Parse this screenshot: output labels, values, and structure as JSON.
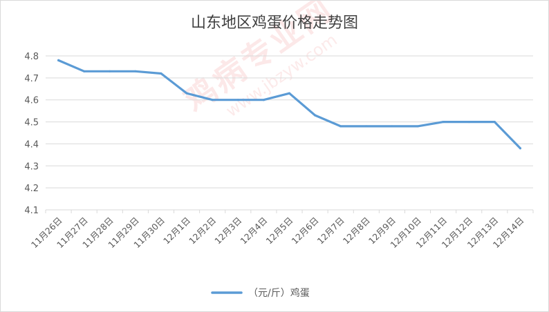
{
  "watermark": {
    "main": "鸡病专业网",
    "sub": "www.jbzyw.com"
  },
  "chart_data": {
    "type": "line",
    "title": "山东地区鸡蛋价格走势图",
    "categories": [
      "11月26日",
      "11月27日",
      "11月28日",
      "11月29日",
      "11月30日",
      "12月1日",
      "12月2日",
      "12月3日",
      "12月4日",
      "12月5日",
      "12月6日",
      "12月7日",
      "12月8日",
      "12月9日",
      "12月10日",
      "12月11日",
      "12月12日",
      "12月13日",
      "12月14日"
    ],
    "series": [
      {
        "name": "（元/斤）鸡蛋",
        "values": [
          4.78,
          4.73,
          4.73,
          4.73,
          4.72,
          4.63,
          4.6,
          4.6,
          4.6,
          4.63,
          4.53,
          4.48,
          4.48,
          4.48,
          4.48,
          4.5,
          4.5,
          4.5,
          4.38
        ],
        "color": "#5b9bd5"
      }
    ],
    "ylim": [
      4.1,
      4.8
    ],
    "yticks": [
      "4.1",
      "4.2",
      "4.3",
      "4.4",
      "4.5",
      "4.6",
      "4.7",
      "4.8"
    ],
    "grid": true,
    "legend_position": "bottom"
  }
}
